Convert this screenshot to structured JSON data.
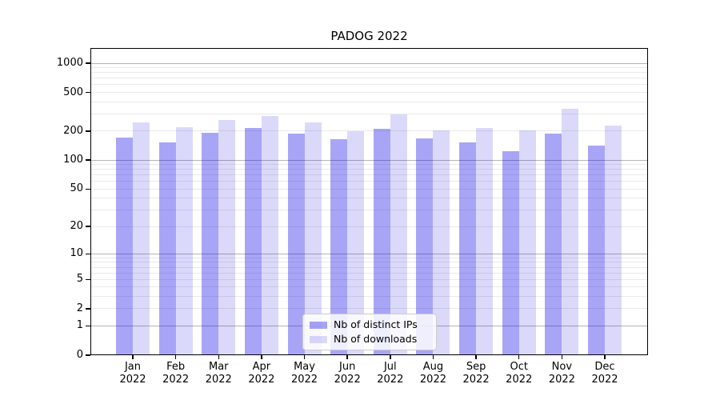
{
  "chart_data": {
    "type": "bar",
    "title": "PADOG 2022",
    "categories": [
      "Jan 2022",
      "Feb 2022",
      "Mar 2022",
      "Apr 2022",
      "May 2022",
      "Jun 2022",
      "Jul 2022",
      "Aug 2022",
      "Sep 2022",
      "Oct 2022",
      "Nov 2022",
      "Dec 2022"
    ],
    "series": [
      {
        "name": "Nb of distinct IPs",
        "color": "rgba(13,5,230,0.36)",
        "values": [
          172,
          154,
          192,
          216,
          190,
          165,
          211,
          168,
          153,
          125,
          190,
          141
        ]
      },
      {
        "name": "Nb of downloads",
        "color": "rgba(30,18,224,0.16)",
        "values": [
          244,
          219,
          262,
          286,
          246,
          198,
          298,
          204,
          215,
          203,
          339,
          226
        ]
      }
    ],
    "xlabel": "",
    "ylabel": "",
    "yscale": "log1p",
    "ylim": [
      0,
      1400
    ],
    "yticks": [
      0,
      1,
      2,
      5,
      10,
      20,
      50,
      100,
      200,
      500,
      1000
    ],
    "grid": {
      "show": true,
      "major_at": [
        1,
        10,
        100,
        1000
      ]
    },
    "legend_position": "lower center"
  },
  "colors": {
    "background": "#ffffff",
    "axis": "#000000",
    "grid_major": "#b5b5b5",
    "grid_minor": "#e9e9e9",
    "legend_bg": "rgba(255,255,255,0.82)",
    "legend_border": "#cccccc",
    "text": "#000000"
  }
}
